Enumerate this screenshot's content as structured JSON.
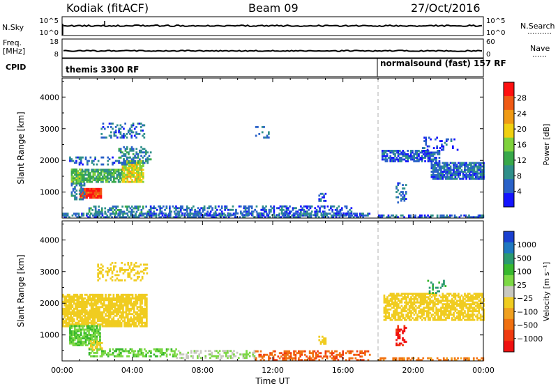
{
  "header": {
    "station": "Kodiak (fitACF)",
    "beam": "Beam 09",
    "date": "27/Oct/2016"
  },
  "strip_labels": {
    "nsky": "N.Sky",
    "nsky_ticks": [
      "10^5",
      "10^0"
    ],
    "nsearch": "N.Search",
    "nsearch_ticks": [
      "10^5",
      "10^0"
    ],
    "freq_line1": "Freq.",
    "freq_line2": "[MHz]",
    "freq_ticks": [
      "18",
      "8"
    ],
    "nave": "Nave",
    "nave_ticks": [
      "60",
      "0"
    ],
    "cpid": "CPID",
    "cpid_mode1": "themis 3300 RF",
    "cpid_mode2": "normalsound (fast) 157 RF"
  },
  "colors": {
    "power": [
      "#1414ff",
      "#2a62c8",
      "#2f8f8a",
      "#38a84a",
      "#7fd23c",
      "#f0d010",
      "#f09a14",
      "#f05a14",
      "#ff1010"
    ],
    "velocity": [
      "#1a40d0",
      "#1f78c0",
      "#2b9a70",
      "#38b82e",
      "#7cd844",
      "#c8c8c0",
      "#f0cc20",
      "#f0a020",
      "#f07010",
      "#f03a10",
      "#f01010"
    ]
  },
  "chart_data": [
    {
      "type": "heatmap",
      "name": "power",
      "ylabel": "Slant Range [km]",
      "ylim": [
        180,
        4600
      ],
      "yticks": [
        1000,
        2000,
        3000,
        4000
      ],
      "xlim": [
        0,
        24
      ],
      "xticks": [
        "00:00",
        "04:00",
        "08:00",
        "12:00",
        "16:00",
        "20:00",
        "00:00"
      ],
      "xlabel": "Time UT",
      "colorbar_label": "Power [dB]",
      "colorbar_ticks": [
        "28",
        "24",
        "20",
        "16",
        "12",
        "8",
        "4"
      ],
      "mode_change_hour": 18.0,
      "regions": [
        {
          "t0": 0.5,
          "t1": 1.1,
          "r0": 1250,
          "r1": 1700,
          "val": 16,
          "density": 0.85
        },
        {
          "t0": 1.1,
          "t1": 3.4,
          "r0": 1300,
          "r1": 1700,
          "val": 14,
          "density": 0.8
        },
        {
          "t0": 3.4,
          "t1": 4.6,
          "r0": 1300,
          "r1": 2000,
          "val": 20,
          "density": 0.85
        },
        {
          "t0": 0.4,
          "t1": 4.0,
          "r0": 1850,
          "r1": 2100,
          "val": 8,
          "density": 0.35
        },
        {
          "t0": 3.2,
          "t1": 5.0,
          "r0": 1900,
          "r1": 2450,
          "val": 10,
          "density": 0.4
        },
        {
          "t0": 2.2,
          "t1": 4.7,
          "r0": 2700,
          "r1": 3150,
          "val": 8,
          "density": 0.3
        },
        {
          "t0": 1.0,
          "t1": 2.2,
          "r0": 800,
          "r1": 1130,
          "val": 30,
          "density": 0.95
        },
        {
          "t0": 0.5,
          "t1": 1.3,
          "r0": 750,
          "r1": 1250,
          "val": 9,
          "density": 0.4
        },
        {
          "t0": 1.5,
          "t1": 5.0,
          "r0": 300,
          "r1": 560,
          "val": 10,
          "density": 0.5
        },
        {
          "t0": 5.0,
          "t1": 16.5,
          "r0": 250,
          "r1": 550,
          "val": 7,
          "density": 0.45
        },
        {
          "t0": 0.0,
          "t1": 17.5,
          "r0": 185,
          "r1": 320,
          "val": 8,
          "density": 0.55
        },
        {
          "t0": 14.6,
          "t1": 15.0,
          "r0": 700,
          "r1": 950,
          "val": 7,
          "density": 0.6
        },
        {
          "t0": 11.0,
          "t1": 11.8,
          "r0": 2700,
          "r1": 3050,
          "val": 8,
          "density": 0.2
        },
        {
          "t0": 18.2,
          "t1": 21.5,
          "r0": 1950,
          "r1": 2300,
          "val": 7,
          "density": 0.7
        },
        {
          "t0": 21.0,
          "t1": 24.0,
          "r0": 1400,
          "r1": 1900,
          "val": 8,
          "density": 0.8
        },
        {
          "t0": 20.5,
          "t1": 22.5,
          "r0": 2200,
          "r1": 2700,
          "val": 6,
          "density": 0.2
        },
        {
          "t0": 19.0,
          "t1": 19.6,
          "r0": 650,
          "r1": 1300,
          "val": 8,
          "density": 0.4
        },
        {
          "t0": 18.0,
          "t1": 24.0,
          "r0": 185,
          "r1": 280,
          "val": 8,
          "density": 0.5
        }
      ]
    },
    {
      "type": "heatmap",
      "name": "velocity",
      "ylabel": "Slant Range [km]",
      "ylim": [
        180,
        4600
      ],
      "yticks": [
        1000,
        2000,
        3000,
        4000
      ],
      "xlim": [
        0,
        24
      ],
      "xticks": [
        "00:00",
        "04:00",
        "08:00",
        "12:00",
        "16:00",
        "20:00",
        "00:00"
      ],
      "xlabel": "Time UT",
      "colorbar_label": "Velocity [m s⁻¹]",
      "colorbar_ticks": [
        "1000",
        "500",
        "100",
        "25",
        "−25",
        "−100",
        "−500",
        "−1000"
      ],
      "mode_change_hour": 18.0,
      "regions": [
        {
          "t0": 0.0,
          "t1": 4.8,
          "r0": 1250,
          "r1": 2250,
          "val": 0,
          "density": 0.8
        },
        {
          "t0": 0.4,
          "t1": 2.2,
          "r0": 650,
          "r1": 1300,
          "val": 90,
          "density": 0.8
        },
        {
          "t0": 1.5,
          "t1": 2.3,
          "r0": 500,
          "r1": 800,
          "val": 0,
          "density": 0.5
        },
        {
          "t0": 2.0,
          "t1": 4.8,
          "r0": 2700,
          "r1": 3300,
          "val": 0,
          "density": 0.3
        },
        {
          "t0": 1.5,
          "t1": 6.5,
          "r0": 300,
          "r1": 560,
          "val": 90,
          "density": 0.55
        },
        {
          "t0": 6.5,
          "t1": 11.0,
          "r0": 250,
          "r1": 520,
          "val": 50,
          "density": 0.45
        },
        {
          "t0": 11.0,
          "t1": 17.5,
          "r0": 185,
          "r1": 480,
          "val": -90,
          "density": 0.45
        },
        {
          "t0": 14.6,
          "t1": 15.0,
          "r0": 700,
          "r1": 950,
          "val": 0,
          "density": 0.6
        },
        {
          "t0": 18.3,
          "t1": 24.0,
          "r0": 1450,
          "r1": 2300,
          "val": 0,
          "density": 0.7
        },
        {
          "t0": 19.0,
          "t1": 19.6,
          "r0": 650,
          "r1": 1300,
          "val": -300,
          "density": 0.4
        },
        {
          "t0": 20.8,
          "t1": 21.8,
          "r0": 2300,
          "r1": 2700,
          "val": 300,
          "density": 0.25
        },
        {
          "t0": 18.0,
          "t1": 24.0,
          "r0": 185,
          "r1": 280,
          "val": -60,
          "density": 0.5
        }
      ]
    }
  ]
}
